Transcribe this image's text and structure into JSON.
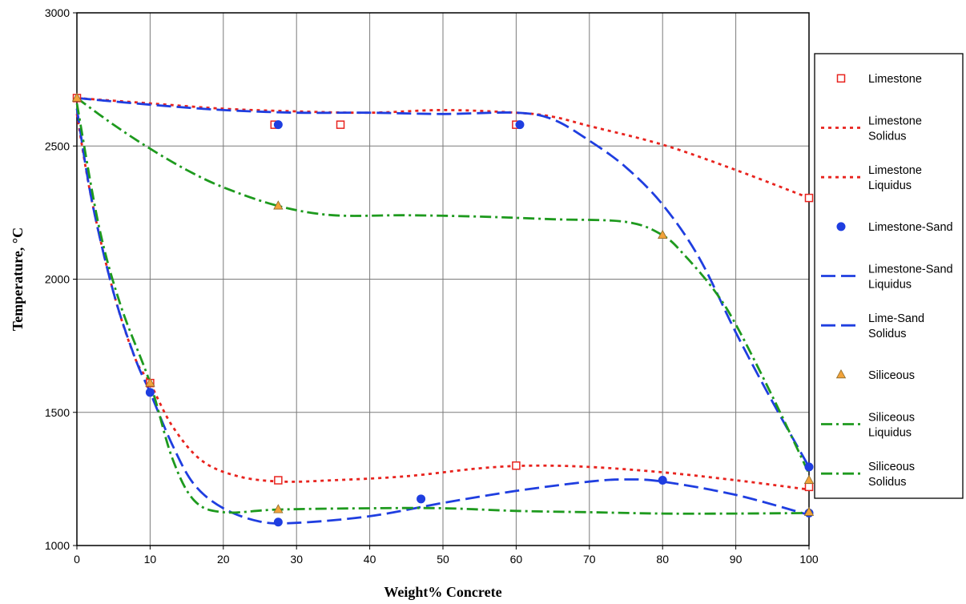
{
  "chart_data": {
    "type": "line",
    "xlabel": "Weight% Concrete",
    "ylabel": "Temperature, °C",
    "xlim": [
      0,
      100
    ],
    "ylim": [
      1000,
      3000
    ],
    "xticks": [
      0,
      10,
      20,
      30,
      40,
      50,
      60,
      70,
      80,
      90,
      100
    ],
    "yticks": [
      1000,
      1500,
      2000,
      2500,
      3000
    ],
    "grid": true,
    "legend_position": "right",
    "series": [
      {
        "name": "Limestone",
        "kind": "markers",
        "marker": "square",
        "color": "#e8231e",
        "points": [
          [
            0,
            2680
          ],
          [
            27,
            2580
          ],
          [
            36,
            2580
          ],
          [
            60,
            2580
          ],
          [
            10,
            1610
          ],
          [
            27.5,
            1245
          ],
          [
            60,
            1300
          ],
          [
            100,
            1220
          ],
          [
            100,
            2305
          ]
        ]
      },
      {
        "name": "Limestone Solidus",
        "kind": "line",
        "dash": "dotted",
        "color": "#e8231e",
        "points": [
          [
            0,
            2620
          ],
          [
            2,
            2300
          ],
          [
            5,
            1950
          ],
          [
            8,
            1700
          ],
          [
            10,
            1610
          ],
          [
            13,
            1450
          ],
          [
            17,
            1320
          ],
          [
            22,
            1260
          ],
          [
            28,
            1240
          ],
          [
            35,
            1245
          ],
          [
            45,
            1260
          ],
          [
            55,
            1290
          ],
          [
            62,
            1300
          ],
          [
            70,
            1295
          ],
          [
            80,
            1275
          ],
          [
            90,
            1245
          ],
          [
            100,
            1210
          ]
        ]
      },
      {
        "name": "Limestone Liquidus",
        "kind": "line",
        "dash": "dotted",
        "color": "#e8231e",
        "points": [
          [
            0,
            2680
          ],
          [
            10,
            2660
          ],
          [
            20,
            2640
          ],
          [
            30,
            2630
          ],
          [
            40,
            2625
          ],
          [
            50,
            2635
          ],
          [
            60,
            2625
          ],
          [
            65,
            2610
          ],
          [
            70,
            2575
          ],
          [
            80,
            2505
          ],
          [
            90,
            2410
          ],
          [
            100,
            2305
          ]
        ]
      },
      {
        "name": "Limestone-Sand",
        "kind": "markers",
        "marker": "circle",
        "color": "#1f3ee0",
        "points": [
          [
            27.5,
            2580
          ],
          [
            60.5,
            2580
          ],
          [
            10,
            1575
          ],
          [
            27.5,
            1088
          ],
          [
            47,
            1175
          ],
          [
            80,
            1245
          ],
          [
            100,
            1295
          ],
          [
            100,
            1122
          ]
        ]
      },
      {
        "name": "Limestone-Sand Liquidus",
        "kind": "line",
        "dash": "dashed",
        "color": "#1f3ee0",
        "points": [
          [
            0,
            2680
          ],
          [
            10,
            2655
          ],
          [
            20,
            2635
          ],
          [
            30,
            2625
          ],
          [
            40,
            2625
          ],
          [
            50,
            2620
          ],
          [
            60,
            2625
          ],
          [
            65,
            2600
          ],
          [
            70,
            2520
          ],
          [
            75,
            2420
          ],
          [
            80,
            2280
          ],
          [
            85,
            2080
          ],
          [
            90,
            1800
          ],
          [
            95,
            1540
          ],
          [
            100,
            1295
          ]
        ]
      },
      {
        "name": "Lime-Sand Solidus",
        "kind": "line",
        "dash": "dashed",
        "color": "#1f3ee0",
        "points": [
          [
            0,
            2640
          ],
          [
            2,
            2300
          ],
          [
            5,
            1950
          ],
          [
            8,
            1700
          ],
          [
            10,
            1575
          ],
          [
            13,
            1380
          ],
          [
            16,
            1230
          ],
          [
            20,
            1140
          ],
          [
            25,
            1090
          ],
          [
            30,
            1085
          ],
          [
            40,
            1110
          ],
          [
            50,
            1160
          ],
          [
            60,
            1205
          ],
          [
            70,
            1240
          ],
          [
            75,
            1248
          ],
          [
            80,
            1240
          ],
          [
            90,
            1190
          ],
          [
            100,
            1115
          ]
        ]
      },
      {
        "name": "Siliceous",
        "kind": "markers",
        "marker": "triangle",
        "color": "#f2a33a",
        "points": [
          [
            0,
            2680
          ],
          [
            27.5,
            2275
          ],
          [
            80,
            2165
          ],
          [
            10,
            1610
          ],
          [
            27.5,
            1135
          ],
          [
            100,
            1245
          ],
          [
            100,
            1125
          ]
        ]
      },
      {
        "name": "Siliceous Liquidus",
        "kind": "line",
        "dash": "dashdot",
        "color": "#1e9a1e",
        "points": [
          [
            0,
            2680
          ],
          [
            5,
            2580
          ],
          [
            10,
            2490
          ],
          [
            15,
            2410
          ],
          [
            20,
            2345
          ],
          [
            27.5,
            2275
          ],
          [
            35,
            2240
          ],
          [
            45,
            2240
          ],
          [
            55,
            2235
          ],
          [
            65,
            2225
          ],
          [
            75,
            2215
          ],
          [
            80,
            2165
          ],
          [
            83,
            2090
          ],
          [
            87,
            1960
          ],
          [
            90,
            1830
          ],
          [
            95,
            1560
          ],
          [
            100,
            1270
          ]
        ]
      },
      {
        "name": "Siliceous Solidus",
        "kind": "line",
        "dash": "dashdot",
        "color": "#1e9a1e",
        "points": [
          [
            0,
            2660
          ],
          [
            3,
            2200
          ],
          [
            6,
            1900
          ],
          [
            10,
            1610
          ],
          [
            13,
            1330
          ],
          [
            16,
            1170
          ],
          [
            20,
            1125
          ],
          [
            27.5,
            1135
          ],
          [
            40,
            1140
          ],
          [
            50,
            1140
          ],
          [
            60,
            1130
          ],
          [
            70,
            1125
          ],
          [
            80,
            1120
          ],
          [
            90,
            1120
          ],
          [
            100,
            1122
          ]
        ]
      }
    ]
  }
}
